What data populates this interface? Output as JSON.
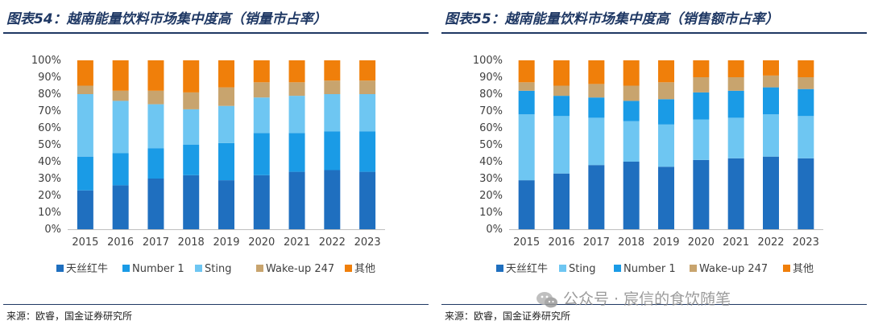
{
  "panels": [
    {
      "title": "图表54：越南能量饮料市场集中度高（销量市占率）",
      "source": "来源：欧睿，国金证券研究所"
    },
    {
      "title": "图表55：越南能量饮料市场集中度高（销售额市占率）",
      "source": "来源：欧睿，国金证券研究所"
    }
  ],
  "watermark": {
    "text": "公众号 · 宸信的食饮随笔",
    "icon": "wechat-icon"
  },
  "colors": {
    "天丝红牛": "#1f6fbf",
    "Number 1": "#1a9be6",
    "Sting": "#6ec6f2",
    "Wake-up 247": "#c8a46e",
    "其他": "#f07f0a",
    "axis": "#bfbfbf"
  },
  "chart_data": [
    {
      "type": "bar",
      "stacked": true,
      "title": "",
      "xlabel": "",
      "ylabel": "",
      "ylim": [
        0,
        100
      ],
      "yticks": [
        "0%",
        "10%",
        "20%",
        "30%",
        "40%",
        "50%",
        "60%",
        "70%",
        "80%",
        "90%",
        "100%"
      ],
      "categories": [
        "2015",
        "2016",
        "2017",
        "2018",
        "2019",
        "2020",
        "2021",
        "2022",
        "2023"
      ],
      "legend_position": "bottom",
      "series": [
        {
          "name": "天丝红牛",
          "values": [
            23,
            26,
            30,
            32,
            29,
            32,
            34,
            35,
            34
          ]
        },
        {
          "name": "Number 1",
          "values": [
            20,
            19,
            18,
            18,
            22,
            25,
            23,
            23,
            24
          ]
        },
        {
          "name": "Sting",
          "values": [
            37,
            31,
            26,
            21,
            22,
            21,
            22,
            22,
            22
          ]
        },
        {
          "name": "Wake-up 247",
          "values": [
            5,
            6,
            8,
            10,
            11,
            9,
            8,
            8,
            8
          ]
        },
        {
          "name": "其他",
          "values": [
            15,
            18,
            18,
            19,
            16,
            13,
            13,
            12,
            12
          ]
        }
      ]
    },
    {
      "type": "bar",
      "stacked": true,
      "title": "",
      "xlabel": "",
      "ylabel": "",
      "ylim": [
        0,
        100
      ],
      "yticks": [
        "0%",
        "10%",
        "20%",
        "30%",
        "40%",
        "50%",
        "60%",
        "70%",
        "80%",
        "90%",
        "100%"
      ],
      "categories": [
        "2015",
        "2016",
        "2017",
        "2018",
        "2019",
        "2020",
        "2021",
        "2022",
        "2023"
      ],
      "legend_position": "bottom",
      "series": [
        {
          "name": "天丝红牛",
          "values": [
            29,
            33,
            38,
            40,
            37,
            41,
            42,
            43,
            42
          ]
        },
        {
          "name": "Sting",
          "values": [
            39,
            34,
            28,
            24,
            25,
            24,
            24,
            25,
            25
          ]
        },
        {
          "name": "Number 1",
          "values": [
            14,
            12,
            12,
            12,
            15,
            16,
            16,
            16,
            16
          ]
        },
        {
          "name": "Wake-up 247",
          "values": [
            5,
            6,
            8,
            9,
            10,
            9,
            8,
            7,
            7
          ]
        },
        {
          "name": "其他",
          "values": [
            13,
            15,
            14,
            15,
            13,
            10,
            10,
            9,
            10
          ]
        }
      ]
    }
  ]
}
